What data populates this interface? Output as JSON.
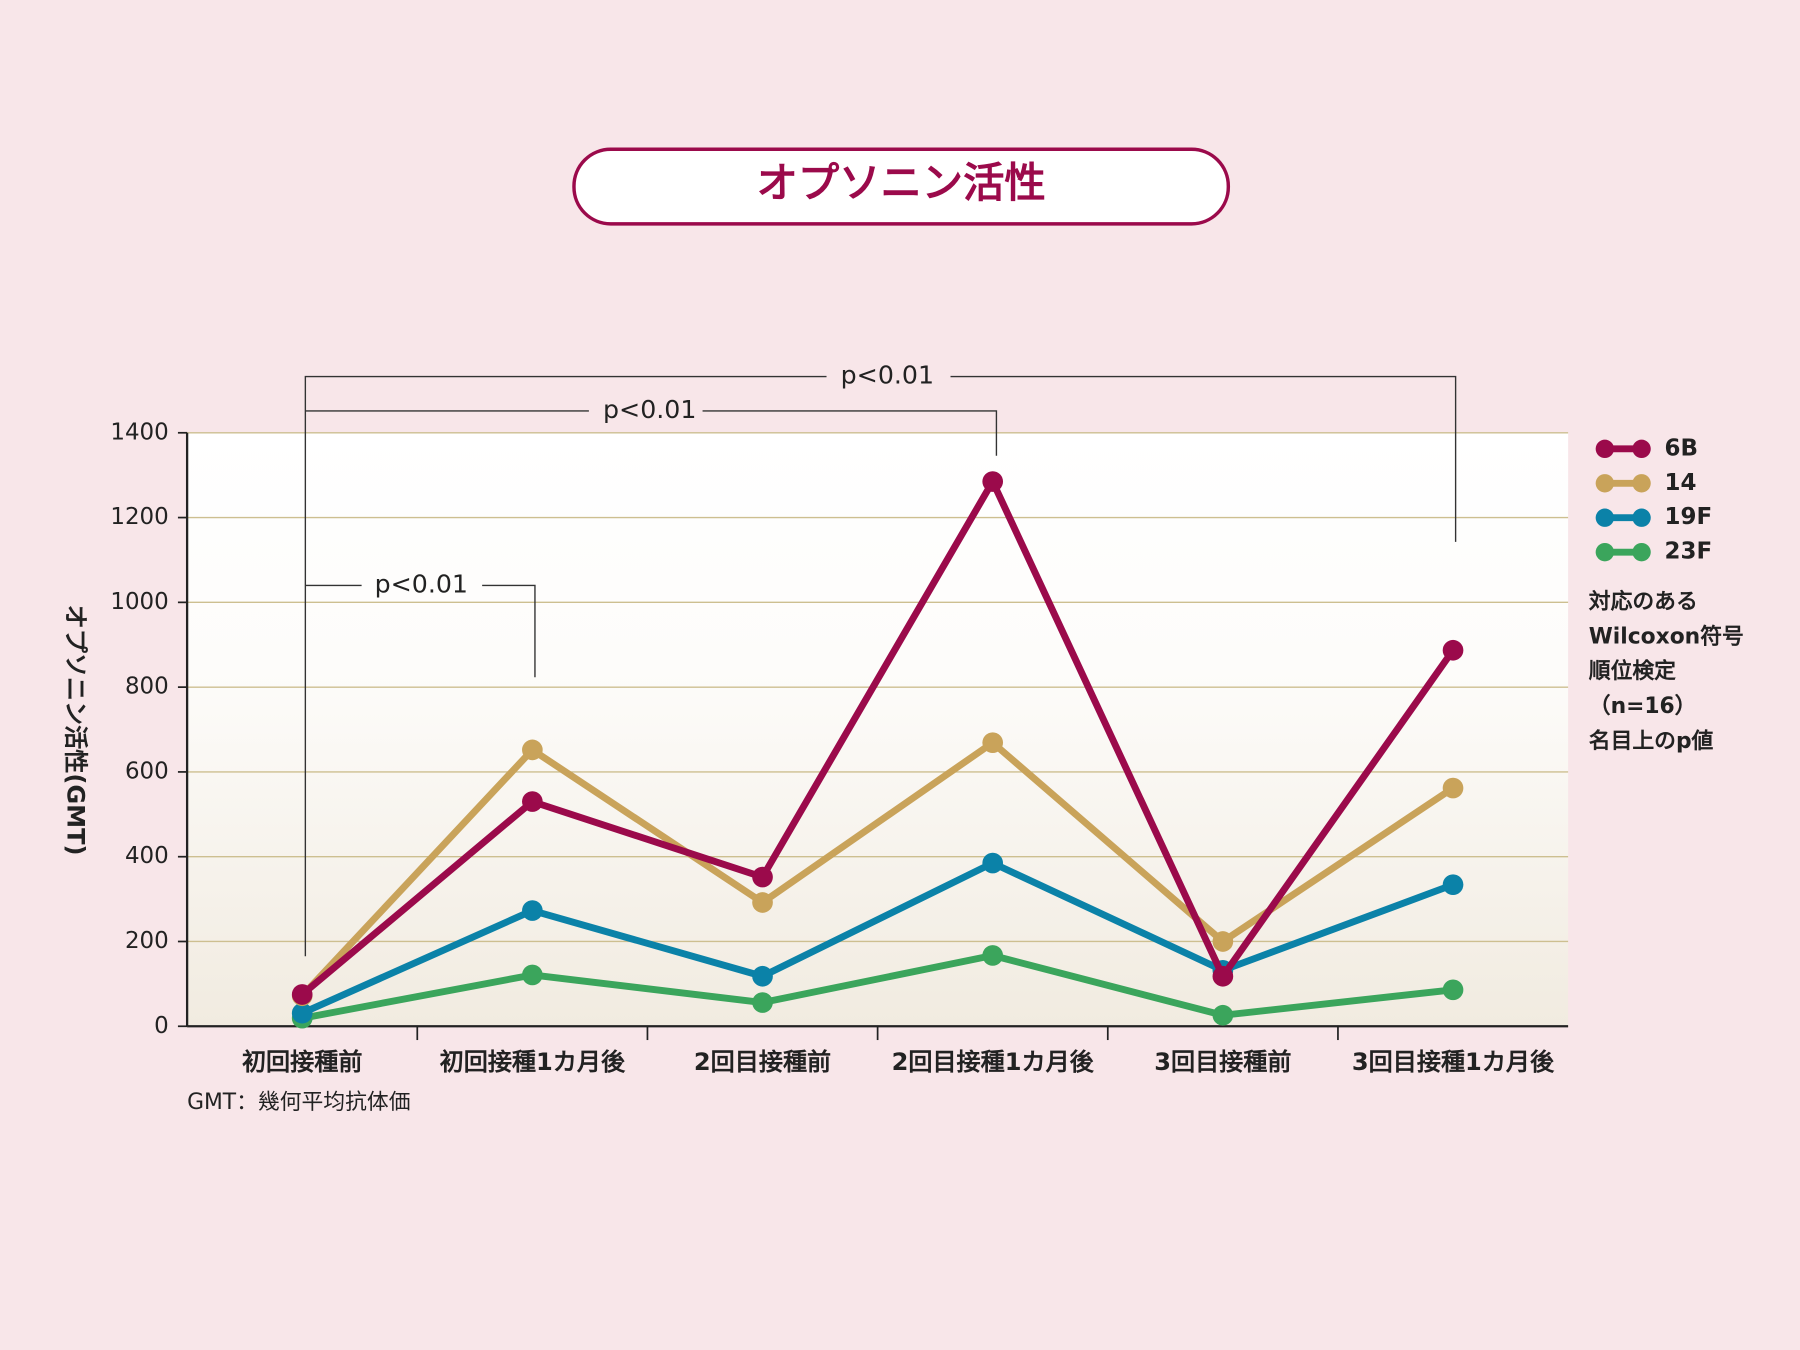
{
  "chart_data": {
    "type": "line",
    "title": "オプソニン活性",
    "y_label": "オプソニン活性(GMT)",
    "footnote": "GMT：幾何平均抗体価",
    "categories": [
      "初回接種前",
      "初回接種1カ月後",
      "2回目接種前",
      "2回目接種1カ月後",
      "3回目接種前",
      "3回目接種1カ月後"
    ],
    "series": [
      {
        "name": "6B",
        "color": "#9b0a4b",
        "values": [
          75,
          530,
          352,
          1285,
          118,
          887
        ]
      },
      {
        "name": "14",
        "color": "#c9a35a",
        "values": [
          72,
          652,
          292,
          669,
          200,
          562
        ]
      },
      {
        "name": "19F",
        "color": "#0b82a8",
        "values": [
          31,
          273,
          118,
          385,
          132,
          334
        ]
      },
      {
        "name": "23F",
        "color": "#3ba55c",
        "values": [
          19,
          121,
          56,
          167,
          26,
          86
        ]
      }
    ],
    "ylim": [
      0,
      1400
    ],
    "yticks": [
      0,
      200,
      400,
      600,
      800,
      1000,
      1200,
      1400
    ],
    "grid": true,
    "legend_position": "right",
    "legend_note": [
      "対応のある",
      "Wilcoxon符号",
      "順位検定",
      "（n=16）",
      "名目上のp値"
    ],
    "annotations": [
      "p<0.01",
      "p<0.01",
      "p<0.01"
    ]
  }
}
